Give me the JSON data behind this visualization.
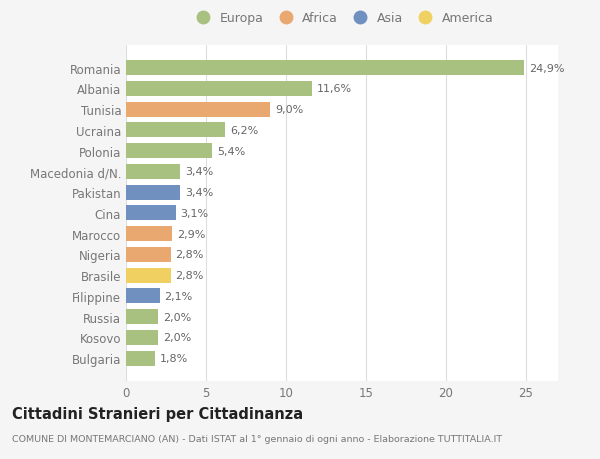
{
  "countries": [
    "Romania",
    "Albania",
    "Tunisia",
    "Ucraina",
    "Polonia",
    "Macedonia d/N.",
    "Pakistan",
    "Cina",
    "Marocco",
    "Nigeria",
    "Brasile",
    "Filippine",
    "Russia",
    "Kosovo",
    "Bulgaria"
  ],
  "values": [
    24.9,
    11.6,
    9.0,
    6.2,
    5.4,
    3.4,
    3.4,
    3.1,
    2.9,
    2.8,
    2.8,
    2.1,
    2.0,
    2.0,
    1.8
  ],
  "labels": [
    "24,9%",
    "11,6%",
    "9,0%",
    "6,2%",
    "5,4%",
    "3,4%",
    "3,4%",
    "3,1%",
    "2,9%",
    "2,8%",
    "2,8%",
    "2,1%",
    "2,0%",
    "2,0%",
    "1,8%"
  ],
  "colors": [
    "#a8c080",
    "#a8c080",
    "#e8a870",
    "#a8c080",
    "#a8c080",
    "#a8c080",
    "#7090c0",
    "#7090c0",
    "#e8a870",
    "#e8a870",
    "#f0d060",
    "#7090c0",
    "#a8c080",
    "#a8c080",
    "#a8c080"
  ],
  "legend_labels": [
    "Europa",
    "Africa",
    "Asia",
    "America"
  ],
  "legend_colors": [
    "#a8c080",
    "#e8a870",
    "#7090c0",
    "#f0d060"
  ],
  "xlim": [
    0,
    27
  ],
  "xticks": [
    0,
    5,
    10,
    15,
    20,
    25
  ],
  "title": "Cittadini Stranieri per Cittadinanza",
  "subtitle": "COMUNE DI MONTEMARCIANO (AN) - Dati ISTAT al 1° gennaio di ogni anno - Elaborazione TUTTITALIA.IT",
  "bg_color": "#f5f5f5",
  "bar_area_color": "#ffffff",
  "grid_color": "#dddddd",
  "label_color": "#777777",
  "text_label_color": "#666666"
}
